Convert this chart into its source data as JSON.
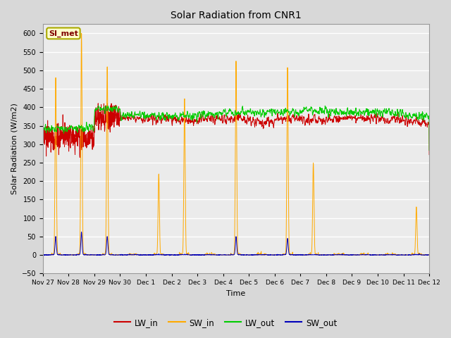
{
  "title": "Solar Radiation from CNR1",
  "xlabel": "Time",
  "ylabel": "Solar Radiation (W/m2)",
  "ylim": [
    -50,
    625
  ],
  "yticks": [
    -50,
    0,
    50,
    100,
    150,
    200,
    250,
    300,
    350,
    400,
    450,
    500,
    550,
    600
  ],
  "fig_bg": "#d8d8d8",
  "plot_bg": "#ebebeb",
  "grid_color": "#ffffff",
  "legend_label": "SI_met",
  "lw_in_color": "#cc0000",
  "sw_in_color": "#ffaa00",
  "lw_out_color": "#00cc00",
  "sw_out_color": "#0000bb",
  "total_days": 15,
  "n_points": 2160,
  "date_ticks": [
    "Nov 27",
    "Nov 28",
    "Nov 29",
    "Nov 30",
    "Dec 1",
    "Dec 2",
    "Dec 3",
    "Dec 4",
    "Dec 5",
    "Dec 6",
    "Dec 7",
    "Dec 8",
    "Dec 9",
    "Dec 10",
    "Dec 11",
    "Dec 12"
  ],
  "sw_in_peaks": {
    "1": 480,
    "2": 600,
    "3": 510,
    "5": 220,
    "6": 425,
    "8": 530,
    "10": 510,
    "11": 250,
    "15": 130
  },
  "sw_out_peaks": {
    "1": 50,
    "2": 62,
    "3": 50,
    "8": 50,
    "10": 45
  },
  "lw_in_base": [
    320,
    315,
    370,
    370,
    370,
    365,
    370,
    368,
    360,
    368,
    365,
    370,
    370,
    368,
    362
  ],
  "lw_out_base": [
    342,
    345,
    395,
    378,
    376,
    377,
    382,
    386,
    387,
    387,
    392,
    387,
    387,
    386,
    377
  ]
}
